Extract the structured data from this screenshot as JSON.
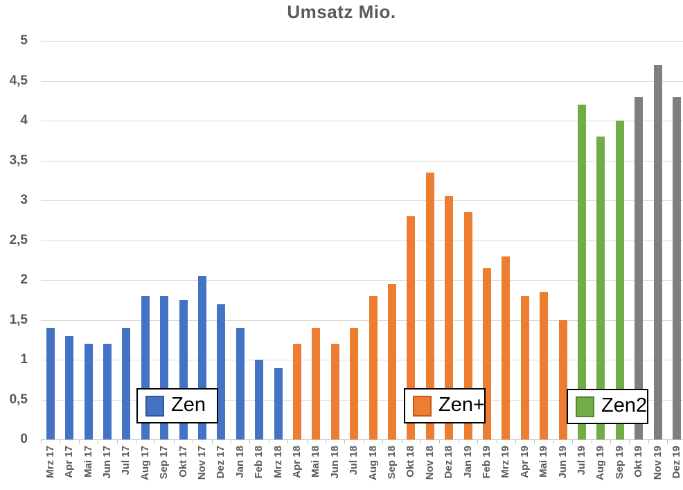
{
  "chart_data": {
    "type": "bar",
    "title": "Umsatz Mio.",
    "xlabel": "",
    "ylabel": "",
    "ylim": [
      0,
      5
    ],
    "ytick_step": 0.5,
    "ytick_labels": [
      "0",
      "0,5",
      "1",
      "1,5",
      "2",
      "2,5",
      "3",
      "3,5",
      "4",
      "4,5",
      "5"
    ],
    "grid": true,
    "legend_position": "overlaid-inside-plot",
    "categories": [
      "Mrz 17",
      "Apr 17",
      "Mai 17",
      "Jun 17",
      "Jul 17",
      "Aug 17",
      "Sep 17",
      "Okt 17",
      "Nov 17",
      "Dez 17",
      "Jan 18",
      "Feb 18",
      "Mrz 18",
      "Apr 18",
      "Mai 18",
      "Jun 18",
      "Jul 18",
      "Aug 18",
      "Sep 18",
      "Okt 18",
      "Nov 18",
      "Dez 18",
      "Jan 19",
      "Feb 19",
      "Mrz 19",
      "Apr 19",
      "Mai 19",
      "Jun 19",
      "Jul 19",
      "Aug 19",
      "Sep 19",
      "Okt 19",
      "Nov 19",
      "Dez 19"
    ],
    "series": [
      {
        "name": "Zen",
        "color": "#4472c4",
        "start_index": 0,
        "start_category": "Mrz 17",
        "values": [
          1.4,
          1.3,
          1.2,
          1.2,
          1.4,
          1.8,
          1.8,
          1.75,
          2.05,
          1.7,
          1.4,
          1.0,
          0.9
        ]
      },
      {
        "name": "Zen+",
        "color": "#ed7d31",
        "start_index": 13,
        "start_category": "Apr 18",
        "values": [
          1.2,
          1.4,
          1.2,
          1.4,
          1.8,
          1.95,
          2.8,
          3.35,
          3.05,
          2.85,
          2.15,
          2.3,
          1.8,
          1.85,
          1.5
        ]
      },
      {
        "name": "Zen2",
        "color": "#70ad47",
        "start_index": 28,
        "start_category": "Jul 19",
        "values": [
          4.2,
          3.8,
          4.0
        ]
      },
      {
        "name": "",
        "color": "#7f7f7f",
        "start_index": 31,
        "start_category": "Okt 19",
        "values": [
          4.3,
          4.7,
          4.3
        ]
      }
    ]
  },
  "legend": [
    {
      "label": "Zen",
      "swatch_color": "#4472c4",
      "swatch_border": "#2f5597"
    },
    {
      "label": "Zen+",
      "swatch_color": "#ed7d31",
      "swatch_border": "#c55a11"
    },
    {
      "label": "Zen2",
      "swatch_color": "#70ad47",
      "swatch_border": "#548235"
    }
  ],
  "colors": {
    "title_text": "#595959",
    "axis_text": "#595959",
    "gridline": "#d9d9d9",
    "axis_line": "#bfbfbf",
    "legend_border": "#000000",
    "background": "#ffffff"
  }
}
